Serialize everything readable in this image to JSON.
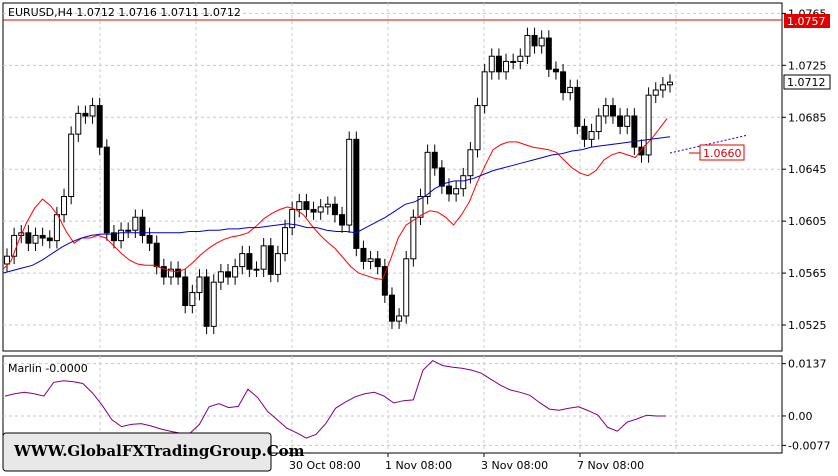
{
  "chart_data": [
    {
      "type": "candlestick",
      "title": "EURUSD,H4  1.0712 1.0716 1.0711 1.0712",
      "symbol": "EURUSD,H4",
      "ohlc_header": [
        "1.0712",
        "1.0716",
        "1.0711",
        "1.0712"
      ],
      "y_ticks": [
        "1.0765",
        "1.0725",
        "1.0685",
        "1.0645",
        "1.0605",
        "1.0565",
        "1.0525"
      ],
      "ylim": [
        1.0505,
        1.0773
      ],
      "x_ticks": [
        "30 Oct 08:00",
        "1 Nov 08:00",
        "3 Nov 08:00",
        "7 Nov 08:00"
      ],
      "grid": true,
      "price_labels": {
        "resistance": "1.0757",
        "current": "1.0712",
        "target": "1.0660"
      },
      "resistance_level": 1.0757,
      "candles_close": [
        1.0578,
        1.0594,
        1.0596,
        1.0588,
        1.0594,
        1.0592,
        1.059,
        1.061,
        1.0624,
        1.0672,
        1.0688,
        1.0686,
        1.0694,
        1.0662,
        1.0596,
        1.059,
        1.0598,
        1.0598,
        1.0608,
        1.0594,
        1.0588,
        1.057,
        1.0562,
        1.0568,
        1.0562,
        1.054,
        1.055,
        1.0562,
        1.0524,
        1.0558,
        1.0566,
        1.0562,
        1.057,
        1.058,
        1.0568,
        1.0568,
        1.0586,
        1.0564,
        1.058,
        1.06,
        1.0614,
        1.062,
        1.0614,
        1.0612,
        1.0616,
        1.0618,
        1.061,
        1.0602,
        1.0668,
        1.0584,
        1.0574,
        1.0576,
        1.057,
        1.0548,
        1.0528,
        1.0532,
        1.0576,
        1.0608,
        1.0624,
        1.0658,
        1.0646,
        1.0632,
        1.0626,
        1.063,
        1.064,
        1.066,
        1.0694,
        1.072,
        1.0732,
        1.072,
        1.0728,
        1.0728,
        1.0732,
        1.0748,
        1.074,
        1.0746,
        1.0722,
        1.072,
        1.0704,
        1.0708,
        1.0678,
        1.0668,
        1.0674,
        1.0686,
        1.0694,
        1.0686,
        1.0678,
        1.0686,
        1.0662,
        1.0656,
        1.0702,
        1.0706,
        1.071,
        1.0712
      ],
      "series": [
        {
          "name": "",
          "color": "#FF0000",
          "values": [
            1.0568,
            1.0574,
            1.059,
            1.0604,
            1.0615,
            1.0622,
            1.0617,
            1.0609,
            1.0597,
            1.0588,
            1.0592,
            1.0592,
            1.0594,
            1.0592,
            1.0586,
            1.058,
            1.0575,
            1.0572,
            1.0571,
            1.0571,
            1.0569,
            1.0567,
            1.0566,
            1.0568,
            1.0573,
            1.0579,
            1.0584,
            1.0588,
            1.0591,
            1.0593,
            1.0594,
            1.0596,
            1.0601,
            1.0607,
            1.0611,
            1.0614,
            1.0616,
            1.0614,
            1.061,
            1.0602,
            1.0595,
            1.0589,
            1.0584,
            1.0577,
            1.057,
            1.0565,
            1.0563,
            1.0561,
            1.056,
            1.0575,
            1.0592,
            1.0602,
            1.0606,
            1.061,
            1.0613,
            1.0612,
            1.0608,
            1.0602,
            1.061,
            1.062,
            1.0635,
            1.0648,
            1.066,
            1.0664,
            1.0666,
            1.0666,
            1.0664,
            1.0662,
            1.0661,
            1.066,
            1.0658,
            1.0652,
            1.0646,
            1.0642,
            1.064,
            1.0644,
            1.0652,
            1.0656,
            1.0658,
            1.0656,
            1.0654,
            1.0662,
            1.0668,
            1.0676,
            1.0684
          ]
        },
        {
          "name": "",
          "color": "#0000CC",
          "values": [
            1.0565,
            1.0567,
            1.0569,
            1.0571,
            1.0575,
            1.058,
            1.0585,
            1.0589,
            1.0592,
            1.0594,
            1.0595,
            1.0595,
            1.0596,
            1.0596,
            1.0596,
            1.0596,
            1.0596,
            1.0596,
            1.0596,
            1.0597,
            1.0597,
            1.0598,
            1.0598,
            1.0599,
            1.0599,
            1.06,
            1.06,
            1.0601,
            1.0602,
            1.0603,
            1.0602,
            1.06,
            1.06,
            1.0598,
            1.0597,
            1.0597,
            1.0596,
            1.06,
            1.0604,
            1.0608,
            1.0613,
            1.0618,
            1.062,
            1.0624,
            1.063,
            1.0634,
            1.0636,
            1.0636,
            1.0638,
            1.0641,
            1.0644,
            1.0646,
            1.0648,
            1.065,
            1.0652,
            1.0654,
            1.0656,
            1.0657,
            1.0659,
            1.066,
            1.0662,
            1.0663,
            1.0664,
            1.0665,
            1.0666,
            1.0667,
            1.0668,
            1.0669,
            1.067
          ]
        }
      ]
    },
    {
      "type": "line",
      "title": "Marlin -0.0000",
      "y_ticks": [
        "0.0137",
        "0.00",
        "-0.0077"
      ],
      "ylim": [
        -0.0097,
        0.0157
      ],
      "grid": true,
      "series": [
        {
          "name": "Marlin",
          "color": "#800080",
          "values": [
            0.0052,
            0.0058,
            0.0062,
            0.0058,
            0.0052,
            0.0088,
            0.0092,
            0.009,
            0.0085,
            0.006,
            0.0028,
            -0.001,
            -0.0028,
            -0.0022,
            -0.002,
            -0.0026,
            -0.0034,
            -0.004,
            -0.0045,
            -0.0046,
            -0.0022,
            0.0024,
            0.0032,
            0.0022,
            0.0025,
            0.007,
            0.0048,
            0.0012,
            -0.001,
            -0.0032,
            -0.0044,
            -0.0058,
            -0.0048,
            -0.002,
            0.002,
            0.0036,
            0.005,
            0.0058,
            0.0062,
            0.0052,
            0.0034,
            0.004,
            0.0042,
            0.012,
            0.0145,
            0.0132,
            0.0128,
            0.0125,
            0.012,
            0.0112,
            0.0096,
            0.008,
            0.0068,
            0.0062,
            0.0054,
            0.0035,
            0.0018,
            0.0015,
            0.002,
            0.0024,
            0.0014,
            0.0002,
            -0.003,
            -0.004,
            -0.0016,
            -0.0008,
            0.0002,
            0.0,
            0.0
          ]
        }
      ]
    }
  ],
  "watermark": "WWW.GlobalFXTradingGroup.Com"
}
